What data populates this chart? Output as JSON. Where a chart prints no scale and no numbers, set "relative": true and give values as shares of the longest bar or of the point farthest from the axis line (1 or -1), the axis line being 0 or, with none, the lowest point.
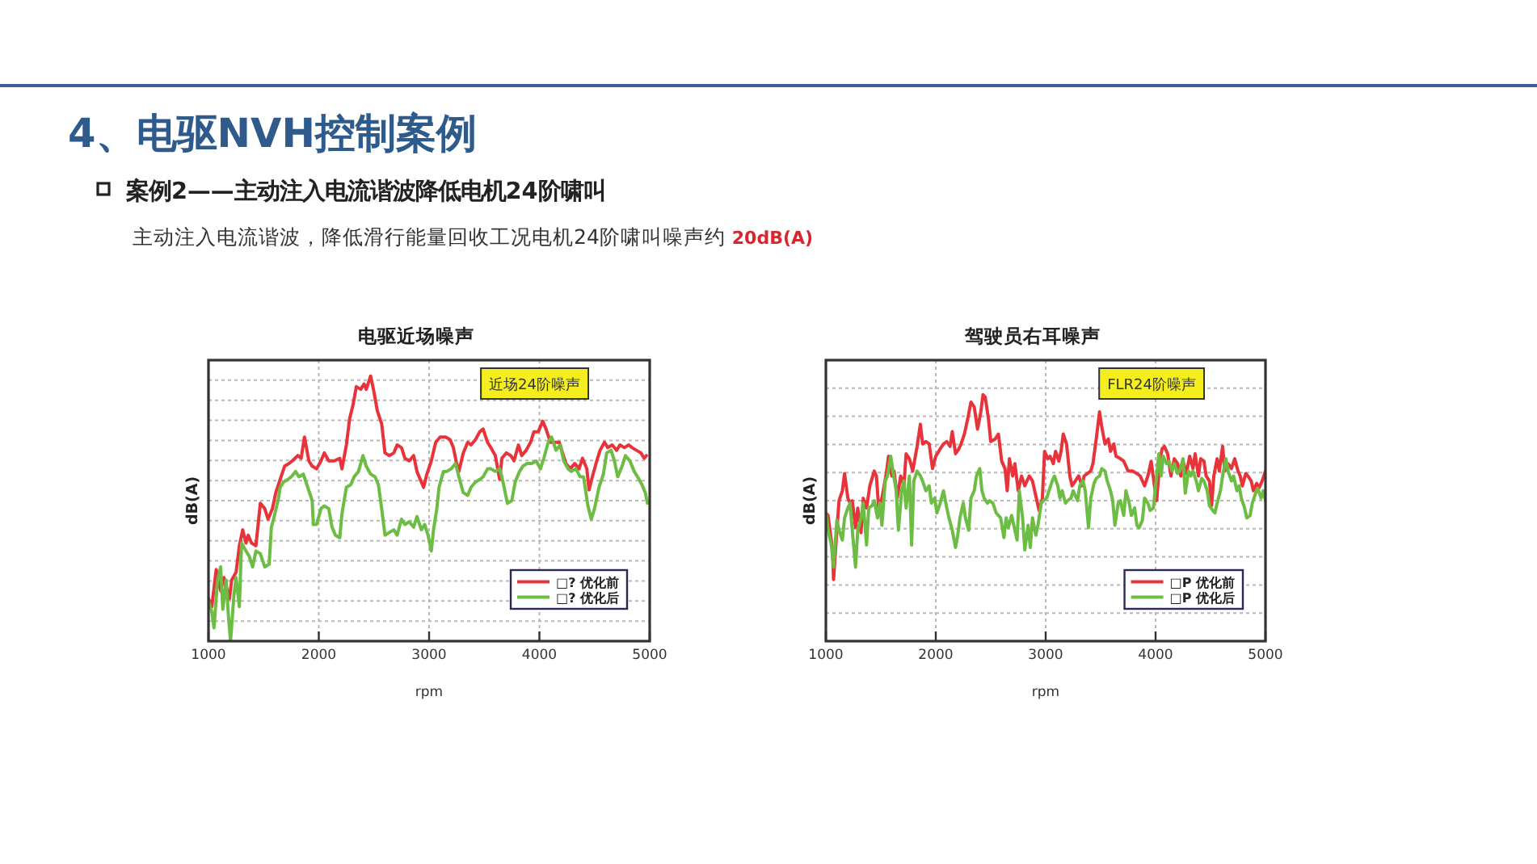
{
  "chart_data": [
    {
      "type": "other",
      "title": "4、电驱NVH控制案例",
      "subtitle": "案例2——主动注入电流谐波降低电机24阶啸叫",
      "annotations": [
        "主动注入电流谐波，降低滑行能量回收工况电机24阶啸叫噪声约",
        "20dB(A)"
      ]
    },
    {
      "type": "line",
      "title": "电驱近场噪声",
      "xlabel": "rpm",
      "ylabel": "dB(A)",
      "relative": true,
      "xlim": [
        1000,
        5000
      ],
      "xticks": [
        1000,
        2000,
        3000,
        4000,
        5000
      ],
      "grid": true,
      "legend": "bottom right",
      "annotations": [
        "近场24阶噪声"
      ],
      "series": [
        {
          "name": "□? 优化前",
          "color": "#e8333b",
          "x": [
            1000,
            1030,
            1070,
            1110,
            1140,
            1190,
            1210,
            1250,
            1280,
            1310,
            1340,
            1360,
            1390,
            1430,
            1470,
            1510,
            1540,
            1580,
            1610,
            1650,
            1690,
            1730,
            1760,
            1810,
            1840,
            1870,
            1910,
            1940,
            1980,
            2020,
            2050,
            2090,
            2140,
            2190,
            2210,
            2250,
            2280,
            2310,
            2340,
            2380,
            2410,
            2430,
            2470,
            2500,
            2530,
            2570,
            2600,
            2640,
            2680,
            2710,
            2750,
            2780,
            2820,
            2860,
            2890,
            2930,
            2950,
            2980,
            3020,
            3060,
            3100,
            3150,
            3190,
            3220,
            3250,
            3270,
            3310,
            3350,
            3380,
            3420,
            3460,
            3490,
            3530,
            3560,
            3600,
            3640,
            3660,
            3700,
            3740,
            3770,
            3810,
            3840,
            3880,
            3920,
            3950,
            3990,
            4030,
            4060,
            4100,
            4140,
            4180,
            4210,
            4240,
            4280,
            4320,
            4360,
            4390,
            4430,
            4450,
            4480,
            4520,
            4550,
            4590,
            4620,
            4660,
            4700,
            4730,
            4770,
            4810,
            4840,
            4880,
            4920,
            4950,
            4970
          ],
          "values": [
            0.16,
            0.13,
            0.27,
            0.19,
            0.24,
            0.16,
            0.23,
            0.26,
            0.36,
            0.42,
            0.37,
            0.4,
            0.37,
            0.36,
            0.52,
            0.5,
            0.46,
            0.5,
            0.56,
            0.61,
            0.66,
            0.67,
            0.68,
            0.7,
            0.69,
            0.77,
            0.68,
            0.66,
            0.65,
            0.68,
            0.71,
            0.68,
            0.68,
            0.69,
            0.65,
            0.74,
            0.84,
            0.89,
            0.96,
            0.95,
            0.97,
            0.95,
            1.0,
            0.94,
            0.87,
            0.82,
            0.71,
            0.7,
            0.71,
            0.74,
            0.73,
            0.69,
            0.68,
            0.7,
            0.64,
            0.6,
            0.58,
            0.63,
            0.68,
            0.75,
            0.77,
            0.77,
            0.76,
            0.73,
            0.67,
            0.64,
            0.71,
            0.75,
            0.74,
            0.76,
            0.79,
            0.8,
            0.75,
            0.73,
            0.7,
            0.61,
            0.69,
            0.71,
            0.7,
            0.68,
            0.74,
            0.7,
            0.72,
            0.75,
            0.79,
            0.79,
            0.83,
            0.8,
            0.75,
            0.75,
            0.75,
            0.71,
            0.67,
            0.65,
            0.67,
            0.65,
            0.69,
            0.65,
            0.57,
            0.62,
            0.68,
            0.72,
            0.75,
            0.73,
            0.74,
            0.72,
            0.74,
            0.73,
            0.74,
            0.73,
            0.72,
            0.71,
            0.69,
            0.7
          ]
        },
        {
          "name": "□? 优化后",
          "color": "#6dbd45",
          "x": [
            1000,
            1030,
            1050,
            1080,
            1110,
            1130,
            1160,
            1180,
            1200,
            1230,
            1250,
            1280,
            1300,
            1340,
            1370,
            1400,
            1430,
            1470,
            1510,
            1550,
            1570,
            1590,
            1630,
            1650,
            1680,
            1720,
            1750,
            1790,
            1820,
            1860,
            1900,
            1940,
            1950,
            1980,
            2020,
            2050,
            2090,
            2120,
            2150,
            2190,
            2210,
            2250,
            2290,
            2320,
            2360,
            2400,
            2430,
            2470,
            2510,
            2540,
            2570,
            2600,
            2640,
            2680,
            2710,
            2750,
            2780,
            2820,
            2860,
            2890,
            2930,
            2960,
            2990,
            3020,
            3040,
            3070,
            3090,
            3130,
            3160,
            3200,
            3240,
            3270,
            3310,
            3350,
            3380,
            3420,
            3460,
            3490,
            3530,
            3560,
            3600,
            3640,
            3670,
            3710,
            3750,
            3780,
            3820,
            3850,
            3890,
            3930,
            3970,
            4010,
            4040,
            4080,
            4110,
            4150,
            4190,
            4220,
            4260,
            4290,
            4330,
            4370,
            4400,
            4440,
            4470,
            4500,
            4540,
            4580,
            4610,
            4650,
            4680,
            4710,
            4750,
            4780,
            4820,
            4860,
            4890,
            4930,
            4960,
            4980
          ],
          "values": [
            0.15,
            0.11,
            0.05,
            0.22,
            0.28,
            0.12,
            0.23,
            0.1,
            0,
            0.17,
            0.24,
            0.13,
            0.37,
            0.34,
            0.32,
            0.28,
            0.34,
            0.33,
            0.28,
            0.29,
            0.43,
            0.46,
            0.53,
            0.58,
            0.6,
            0.61,
            0.62,
            0.64,
            0.62,
            0.63,
            0.58,
            0.53,
            0.44,
            0.44,
            0.5,
            0.51,
            0.5,
            0.43,
            0.4,
            0.39,
            0.48,
            0.58,
            0.59,
            0.62,
            0.64,
            0.7,
            0.66,
            0.63,
            0.62,
            0.59,
            0.5,
            0.4,
            0.41,
            0.42,
            0.4,
            0.46,
            0.44,
            0.45,
            0.43,
            0.47,
            0.42,
            0.44,
            0.4,
            0.34,
            0.42,
            0.5,
            0.58,
            0.64,
            0.64,
            0.65,
            0.67,
            0.62,
            0.56,
            0.55,
            0.58,
            0.6,
            0.61,
            0.62,
            0.65,
            0.65,
            0.64,
            0.65,
            0.6,
            0.52,
            0.53,
            0.6,
            0.64,
            0.66,
            0.67,
            0.67,
            0.68,
            0.65,
            0.69,
            0.75,
            0.77,
            0.72,
            0.74,
            0.68,
            0.65,
            0.64,
            0.65,
            0.62,
            0.62,
            0.51,
            0.46,
            0.5,
            0.58,
            0.63,
            0.71,
            0.72,
            0.68,
            0.62,
            0.66,
            0.7,
            0.68,
            0.64,
            0.62,
            0.59,
            0.56,
            0.52
          ]
        }
      ]
    },
    {
      "type": "line",
      "title": "驾驶员右耳噪声",
      "xlabel": "rpm",
      "ylabel": "dB(A)",
      "relative": true,
      "xlim": [
        1000,
        5000
      ],
      "xticks": [
        1000,
        2000,
        3000,
        4000,
        5000
      ],
      "grid": true,
      "legend": "bottom right",
      "annotations": [
        "FLR24阶噪声"
      ],
      "series": [
        {
          "name": "□P 优化前",
          "color": "#e8333b",
          "x": [
            1000,
            1020,
            1060,
            1070,
            1100,
            1120,
            1150,
            1170,
            1200,
            1220,
            1240,
            1270,
            1290,
            1320,
            1340,
            1370,
            1400,
            1440,
            1460,
            1480,
            1510,
            1550,
            1570,
            1600,
            1620,
            1650,
            1680,
            1710,
            1730,
            1760,
            1790,
            1830,
            1860,
            1880,
            1910,
            1940,
            1970,
            2000,
            2040,
            2070,
            2100,
            2130,
            2150,
            2180,
            2210,
            2230,
            2260,
            2290,
            2320,
            2350,
            2380,
            2410,
            2430,
            2450,
            2480,
            2500,
            2540,
            2570,
            2600,
            2630,
            2650,
            2670,
            2700,
            2720,
            2750,
            2780,
            2810,
            2850,
            2880,
            2920,
            2940,
            2970,
            2990,
            3020,
            3040,
            3070,
            3090,
            3120,
            3140,
            3160,
            3190,
            3220,
            3240,
            3270,
            3300,
            3330,
            3350,
            3380,
            3410,
            3430,
            3460,
            3490,
            3510,
            3540,
            3570,
            3590,
            3620,
            3640,
            3680,
            3710,
            3750,
            3790,
            3830,
            3860,
            3900,
            3930,
            3960,
            3990,
            4010,
            4040,
            4060,
            4080,
            4110,
            4140,
            4170,
            4200,
            4230,
            4250,
            4280,
            4310,
            4340,
            4360,
            4390,
            4410,
            4440,
            4460,
            4490,
            4510,
            4530,
            4560,
            4580,
            4610,
            4630,
            4660,
            4690,
            4720,
            4750,
            4770,
            4790,
            4820,
            4840,
            4870,
            4890,
            4920,
            4940,
            4970,
            5000
          ],
          "values": [
            0.52,
            0.51,
            0.37,
            0.25,
            0.45,
            0.57,
            0.61,
            0.68,
            0.58,
            0.56,
            0.57,
            0.46,
            0.54,
            0.44,
            0.58,
            0.54,
            0.63,
            0.69,
            0.67,
            0.54,
            0.58,
            0.68,
            0.75,
            0.67,
            0.69,
            0.58,
            0.67,
            0.63,
            0.76,
            0.74,
            0.69,
            0.79,
            0.88,
            0.8,
            0.81,
            0.8,
            0.7,
            0.75,
            0.78,
            0.8,
            0.81,
            0.79,
            0.85,
            0.76,
            0.78,
            0.8,
            0.84,
            0.9,
            0.97,
            0.95,
            0.86,
            0.93,
            1.0,
            0.99,
            0.9,
            0.81,
            0.82,
            0.84,
            0.73,
            0.7,
            0.61,
            0.74,
            0.67,
            0.72,
            0.61,
            0.67,
            0.63,
            0.67,
            0.65,
            0.57,
            0.53,
            0.58,
            0.77,
            0.74,
            0.75,
            0.72,
            0.77,
            0.73,
            0.77,
            0.84,
            0.8,
            0.67,
            0.63,
            0.65,
            0.67,
            0.63,
            0.67,
            0.68,
            0.69,
            0.72,
            0.82,
            0.93,
            0.87,
            0.8,
            0.82,
            0.77,
            0.8,
            0.75,
            0.74,
            0.73,
            0.69,
            0.69,
            0.68,
            0.67,
            0.63,
            0.67,
            0.73,
            0.63,
            0.57,
            0.74,
            0.78,
            0.79,
            0.76,
            0.67,
            0.74,
            0.72,
            0.67,
            0.73,
            0.68,
            0.75,
            0.7,
            0.76,
            0.67,
            0.74,
            0.73,
            0.67,
            0.65,
            0.55,
            0.67,
            0.74,
            0.69,
            0.79,
            0.69,
            0.72,
            0.7,
            0.74,
            0.69,
            0.67,
            0.63,
            0.68,
            0.67,
            0.65,
            0.61,
            0.64,
            0.62,
            0.65,
            0.69
          ]
        },
        {
          "name": "□P 优化后",
          "color": "#6dbd45",
          "x": [
            1000,
            1020,
            1050,
            1070,
            1100,
            1120,
            1150,
            1170,
            1200,
            1220,
            1240,
            1270,
            1290,
            1320,
            1340,
            1370,
            1390,
            1420,
            1440,
            1470,
            1490,
            1510,
            1540,
            1560,
            1590,
            1610,
            1640,
            1660,
            1690,
            1710,
            1730,
            1760,
            1780,
            1800,
            1830,
            1860,
            1880,
            1910,
            1940,
            1960,
            1990,
            2010,
            2040,
            2070,
            2100,
            2120,
            2150,
            2180,
            2200,
            2220,
            2250,
            2270,
            2300,
            2320,
            2350,
            2370,
            2400,
            2420,
            2440,
            2470,
            2490,
            2520,
            2550,
            2590,
            2620,
            2640,
            2660,
            2690,
            2710,
            2740,
            2760,
            2790,
            2810,
            2840,
            2860,
            2880,
            2910,
            2930,
            2960,
            2980,
            3010,
            3030,
            3060,
            3080,
            3110,
            3130,
            3150,
            3180,
            3200,
            3230,
            3250,
            3290,
            3310,
            3340,
            3360,
            3390,
            3410,
            3440,
            3460,
            3490,
            3510,
            3540,
            3560,
            3590,
            3610,
            3630,
            3660,
            3680,
            3710,
            3730,
            3760,
            3780,
            3810,
            3830,
            3850,
            3880,
            3900,
            3930,
            3950,
            3980,
            4000,
            4030,
            4050,
            4070,
            4100,
            4120,
            4150,
            4170,
            4200,
            4220,
            4250,
            4270,
            4300,
            4320,
            4340,
            4370,
            4390,
            4420,
            4440,
            4470,
            4490,
            4520,
            4540,
            4560,
            4590,
            4610,
            4640,
            4660,
            4690,
            4710,
            4740,
            4760,
            4780,
            4810,
            4830,
            4860,
            4880,
            4910,
            4930,
            4960,
            4980,
            5000
          ],
          "values": [
            0.52,
            0.45,
            0.39,
            0.3,
            0.49,
            0.45,
            0.41,
            0.5,
            0.54,
            0.56,
            0.45,
            0.3,
            0.45,
            0.5,
            0.56,
            0.39,
            0.54,
            0.55,
            0.57,
            0.5,
            0.56,
            0.47,
            0.65,
            0.67,
            0.75,
            0.69,
            0.61,
            0.45,
            0.61,
            0.65,
            0.54,
            0.67,
            0.39,
            0.65,
            0.69,
            0.67,
            0.65,
            0.61,
            0.63,
            0.56,
            0.58,
            0.52,
            0.56,
            0.61,
            0.54,
            0.5,
            0.45,
            0.38,
            0.43,
            0.5,
            0.56,
            0.5,
            0.45,
            0.58,
            0.61,
            0.67,
            0.7,
            0.61,
            0.58,
            0.56,
            0.57,
            0.56,
            0.52,
            0.5,
            0.42,
            0.5,
            0.46,
            0.51,
            0.47,
            0.41,
            0.61,
            0.5,
            0.37,
            0.47,
            0.38,
            0.5,
            0.43,
            0.47,
            0.56,
            0.57,
            0.58,
            0.61,
            0.65,
            0.67,
            0.63,
            0.58,
            0.61,
            0.56,
            0.57,
            0.58,
            0.61,
            0.57,
            0.63,
            0.65,
            0.61,
            0.46,
            0.58,
            0.64,
            0.66,
            0.67,
            0.7,
            0.69,
            0.65,
            0.61,
            0.57,
            0.47,
            0.56,
            0.57,
            0.51,
            0.61,
            0.56,
            0.51,
            0.54,
            0.47,
            0.46,
            0.49,
            0.58,
            0.56,
            0.53,
            0.54,
            0.63,
            0.76,
            0.67,
            0.75,
            0.72,
            0.73,
            0.69,
            0.72,
            0.68,
            0.69,
            0.74,
            0.6,
            0.69,
            0.67,
            0.69,
            0.65,
            0.61,
            0.66,
            0.65,
            0.61,
            0.55,
            0.53,
            0.52,
            0.56,
            0.61,
            0.67,
            0.74,
            0.69,
            0.65,
            0.67,
            0.61,
            0.63,
            0.58,
            0.54,
            0.5,
            0.51,
            0.56,
            0.6,
            0.62,
            0.58,
            0.61,
            0.57
          ]
        }
      ]
    }
  ]
}
